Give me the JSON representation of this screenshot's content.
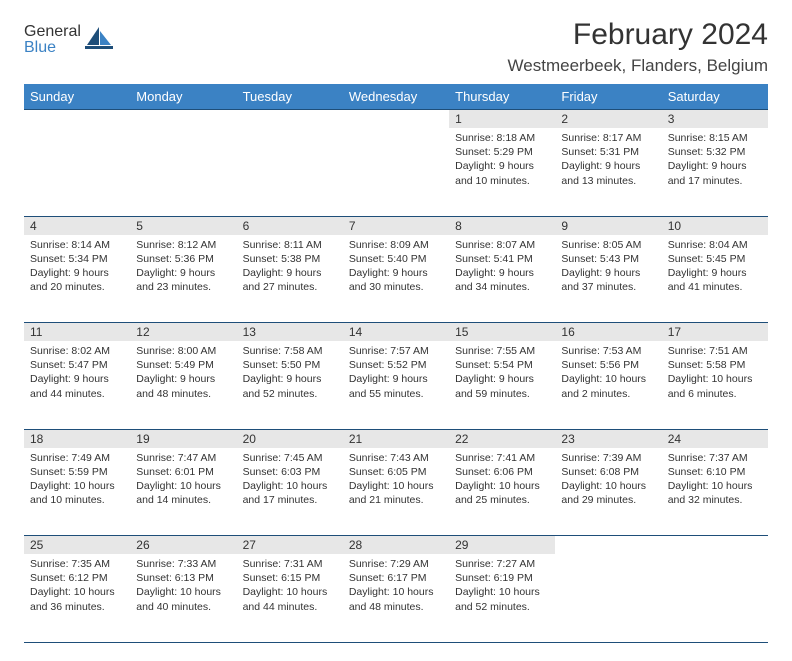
{
  "logo": {
    "top": "General",
    "bottom": "Blue"
  },
  "title": "February 2024",
  "location": "Westmeerbeek, Flanders, Belgium",
  "colors": {
    "header_bg": "#3b82c4",
    "header_text": "#ffffff",
    "daynum_bg": "#e7e7e7",
    "rule": "#1e4e79",
    "logo_gray": "#5a5a5a",
    "logo_blue": "#3b82c4"
  },
  "day_headers": [
    "Sunday",
    "Monday",
    "Tuesday",
    "Wednesday",
    "Thursday",
    "Friday",
    "Saturday"
  ],
  "weeks": [
    [
      null,
      null,
      null,
      null,
      {
        "n": "1",
        "sunrise": "8:18 AM",
        "sunset": "5:29 PM",
        "daylight": "9 hours and 10 minutes."
      },
      {
        "n": "2",
        "sunrise": "8:17 AM",
        "sunset": "5:31 PM",
        "daylight": "9 hours and 13 minutes."
      },
      {
        "n": "3",
        "sunrise": "8:15 AM",
        "sunset": "5:32 PM",
        "daylight": "9 hours and 17 minutes."
      }
    ],
    [
      {
        "n": "4",
        "sunrise": "8:14 AM",
        "sunset": "5:34 PM",
        "daylight": "9 hours and 20 minutes."
      },
      {
        "n": "5",
        "sunrise": "8:12 AM",
        "sunset": "5:36 PM",
        "daylight": "9 hours and 23 minutes."
      },
      {
        "n": "6",
        "sunrise": "8:11 AM",
        "sunset": "5:38 PM",
        "daylight": "9 hours and 27 minutes."
      },
      {
        "n": "7",
        "sunrise": "8:09 AM",
        "sunset": "5:40 PM",
        "daylight": "9 hours and 30 minutes."
      },
      {
        "n": "8",
        "sunrise": "8:07 AM",
        "sunset": "5:41 PM",
        "daylight": "9 hours and 34 minutes."
      },
      {
        "n": "9",
        "sunrise": "8:05 AM",
        "sunset": "5:43 PM",
        "daylight": "9 hours and 37 minutes."
      },
      {
        "n": "10",
        "sunrise": "8:04 AM",
        "sunset": "5:45 PM",
        "daylight": "9 hours and 41 minutes."
      }
    ],
    [
      {
        "n": "11",
        "sunrise": "8:02 AM",
        "sunset": "5:47 PM",
        "daylight": "9 hours and 44 minutes."
      },
      {
        "n": "12",
        "sunrise": "8:00 AM",
        "sunset": "5:49 PM",
        "daylight": "9 hours and 48 minutes."
      },
      {
        "n": "13",
        "sunrise": "7:58 AM",
        "sunset": "5:50 PM",
        "daylight": "9 hours and 52 minutes."
      },
      {
        "n": "14",
        "sunrise": "7:57 AM",
        "sunset": "5:52 PM",
        "daylight": "9 hours and 55 minutes."
      },
      {
        "n": "15",
        "sunrise": "7:55 AM",
        "sunset": "5:54 PM",
        "daylight": "9 hours and 59 minutes."
      },
      {
        "n": "16",
        "sunrise": "7:53 AM",
        "sunset": "5:56 PM",
        "daylight": "10 hours and 2 minutes."
      },
      {
        "n": "17",
        "sunrise": "7:51 AM",
        "sunset": "5:58 PM",
        "daylight": "10 hours and 6 minutes."
      }
    ],
    [
      {
        "n": "18",
        "sunrise": "7:49 AM",
        "sunset": "5:59 PM",
        "daylight": "10 hours and 10 minutes."
      },
      {
        "n": "19",
        "sunrise": "7:47 AM",
        "sunset": "6:01 PM",
        "daylight": "10 hours and 14 minutes."
      },
      {
        "n": "20",
        "sunrise": "7:45 AM",
        "sunset": "6:03 PM",
        "daylight": "10 hours and 17 minutes."
      },
      {
        "n": "21",
        "sunrise": "7:43 AM",
        "sunset": "6:05 PM",
        "daylight": "10 hours and 21 minutes."
      },
      {
        "n": "22",
        "sunrise": "7:41 AM",
        "sunset": "6:06 PM",
        "daylight": "10 hours and 25 minutes."
      },
      {
        "n": "23",
        "sunrise": "7:39 AM",
        "sunset": "6:08 PM",
        "daylight": "10 hours and 29 minutes."
      },
      {
        "n": "24",
        "sunrise": "7:37 AM",
        "sunset": "6:10 PM",
        "daylight": "10 hours and 32 minutes."
      }
    ],
    [
      {
        "n": "25",
        "sunrise": "7:35 AM",
        "sunset": "6:12 PM",
        "daylight": "10 hours and 36 minutes."
      },
      {
        "n": "26",
        "sunrise": "7:33 AM",
        "sunset": "6:13 PM",
        "daylight": "10 hours and 40 minutes."
      },
      {
        "n": "27",
        "sunrise": "7:31 AM",
        "sunset": "6:15 PM",
        "daylight": "10 hours and 44 minutes."
      },
      {
        "n": "28",
        "sunrise": "7:29 AM",
        "sunset": "6:17 PM",
        "daylight": "10 hours and 48 minutes."
      },
      {
        "n": "29",
        "sunrise": "7:27 AM",
        "sunset": "6:19 PM",
        "daylight": "10 hours and 52 minutes."
      },
      null,
      null
    ]
  ],
  "labels": {
    "sunrise": "Sunrise:",
    "sunset": "Sunset:",
    "daylight": "Daylight:"
  }
}
